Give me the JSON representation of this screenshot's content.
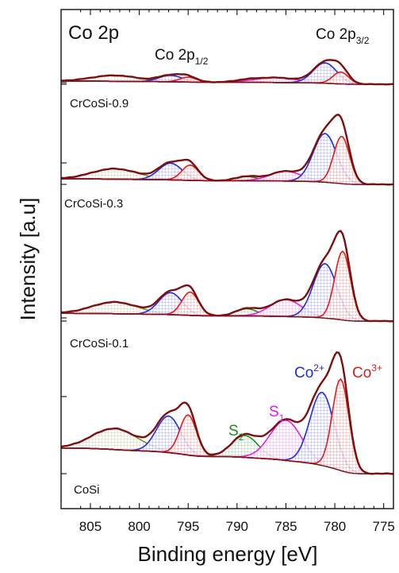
{
  "chart_data": {
    "type": "area",
    "title": "Co 2p",
    "xlabel": "Binding energy [eV]",
    "ylabel": "Intensity [a.u]",
    "xlim": [
      808,
      774
    ],
    "x_reversed": true,
    "x_ticks": [
      805,
      800,
      795,
      790,
      785,
      780,
      775
    ],
    "y_tick_labels": false,
    "annotations": {
      "co2p12": {
        "main": "Co 2p",
        "sub": "1/2"
      },
      "co2p32": {
        "main": "Co 2p",
        "sub": "3/2"
      },
      "co2plus": {
        "main": "Co",
        "sup": "2+"
      },
      "co3plus": {
        "main": "Co",
        "sup": "3+"
      },
      "s1": {
        "main": "S",
        "sub": "1"
      },
      "s2": {
        "main": "S",
        "sub": "2"
      }
    },
    "colors": {
      "envelope": "#7a1010",
      "co2plus": "#1f2bd6",
      "co3plus": "#e01b1b",
      "S1": "#e020e0",
      "S2": "#1f8a1f",
      "satellite": "#8a8a3a",
      "baseline": "#7a1010"
    },
    "panels": [
      {
        "label": "CoSi",
        "baseline_intensity": 1.4,
        "components": [
          {
            "name": "sat",
            "center": 802.5,
            "fwhm": 5.5,
            "height": 1.15
          },
          {
            "name": "Co2+ 2p1/2",
            "center": 797.0,
            "fwhm": 2.9,
            "height": 2.0
          },
          {
            "name": "Co3+ 2p1/2",
            "center": 795.0,
            "fwhm": 2.0,
            "height": 2.2
          },
          {
            "name": "S2",
            "center": 789.2,
            "fwhm": 3.2,
            "height": 1.2
          },
          {
            "name": "S1",
            "center": 785.0,
            "fwhm": 3.8,
            "height": 2.2
          },
          {
            "name": "Co2+ 2p3/2",
            "center": 781.3,
            "fwhm": 2.9,
            "height": 4.0
          },
          {
            "name": "Co3+ 2p3/2",
            "center": 779.4,
            "fwhm": 2.0,
            "height": 5.0
          }
        ]
      },
      {
        "label": "CrCoSi-0.1",
        "baseline_intensity": 0.6,
        "components": [
          {
            "name": "sat",
            "center": 802.5,
            "fwhm": 5.5,
            "height": 0.9
          },
          {
            "name": "Co2+ 2p1/2",
            "center": 796.8,
            "fwhm": 2.8,
            "height": 1.7
          },
          {
            "name": "Co3+ 2p1/2",
            "center": 794.8,
            "fwhm": 2.0,
            "height": 1.8
          },
          {
            "name": "S2",
            "center": 789.0,
            "fwhm": 2.6,
            "height": 0.55
          },
          {
            "name": "S1",
            "center": 785.0,
            "fwhm": 3.8,
            "height": 1.3
          },
          {
            "name": "Co2+ 2p3/2",
            "center": 781.0,
            "fwhm": 2.8,
            "height": 4.2
          },
          {
            "name": "Co3+ 2p3/2",
            "center": 779.2,
            "fwhm": 1.9,
            "height": 5.3
          }
        ]
      },
      {
        "label": "CrCoSi-0.3",
        "baseline_intensity": 0.4,
        "components": [
          {
            "name": "sat",
            "center": 802.5,
            "fwhm": 5.5,
            "height": 0.75
          },
          {
            "name": "Co2+ 2p1/2",
            "center": 796.8,
            "fwhm": 2.8,
            "height": 1.2
          },
          {
            "name": "Co3+ 2p1/2",
            "center": 794.8,
            "fwhm": 2.0,
            "height": 1.1
          },
          {
            "name": "S2",
            "center": 789.0,
            "fwhm": 2.6,
            "height": 0.3
          },
          {
            "name": "S1",
            "center": 785.0,
            "fwhm": 3.8,
            "height": 0.7
          },
          {
            "name": "Co2+ 2p3/2",
            "center": 781.0,
            "fwhm": 2.8,
            "height": 3.5
          },
          {
            "name": "Co3+ 2p3/2",
            "center": 779.3,
            "fwhm": 1.9,
            "height": 3.4
          }
        ]
      },
      {
        "label": "CrCoSi-0.9",
        "baseline_intensity": 0.3,
        "components": [
          {
            "name": "sat",
            "center": 802.5,
            "fwhm": 5.5,
            "height": 0.55
          },
          {
            "name": "Co2+ 2p1/2",
            "center": 796.8,
            "fwhm": 2.8,
            "height": 0.6
          },
          {
            "name": "Co3+ 2p1/2",
            "center": 795.0,
            "fwhm": 2.0,
            "height": 0.45
          },
          {
            "name": "S2",
            "center": 789.0,
            "fwhm": 2.6,
            "height": 0.15
          },
          {
            "name": "S1",
            "center": 786.0,
            "fwhm": 5.0,
            "height": 0.45
          },
          {
            "name": "Co2+ 2p3/2",
            "center": 781.0,
            "fwhm": 2.8,
            "height": 1.9
          },
          {
            "name": "Co3+ 2p3/2",
            "center": 779.4,
            "fwhm": 1.9,
            "height": 1.1
          }
        ]
      }
    ]
  }
}
